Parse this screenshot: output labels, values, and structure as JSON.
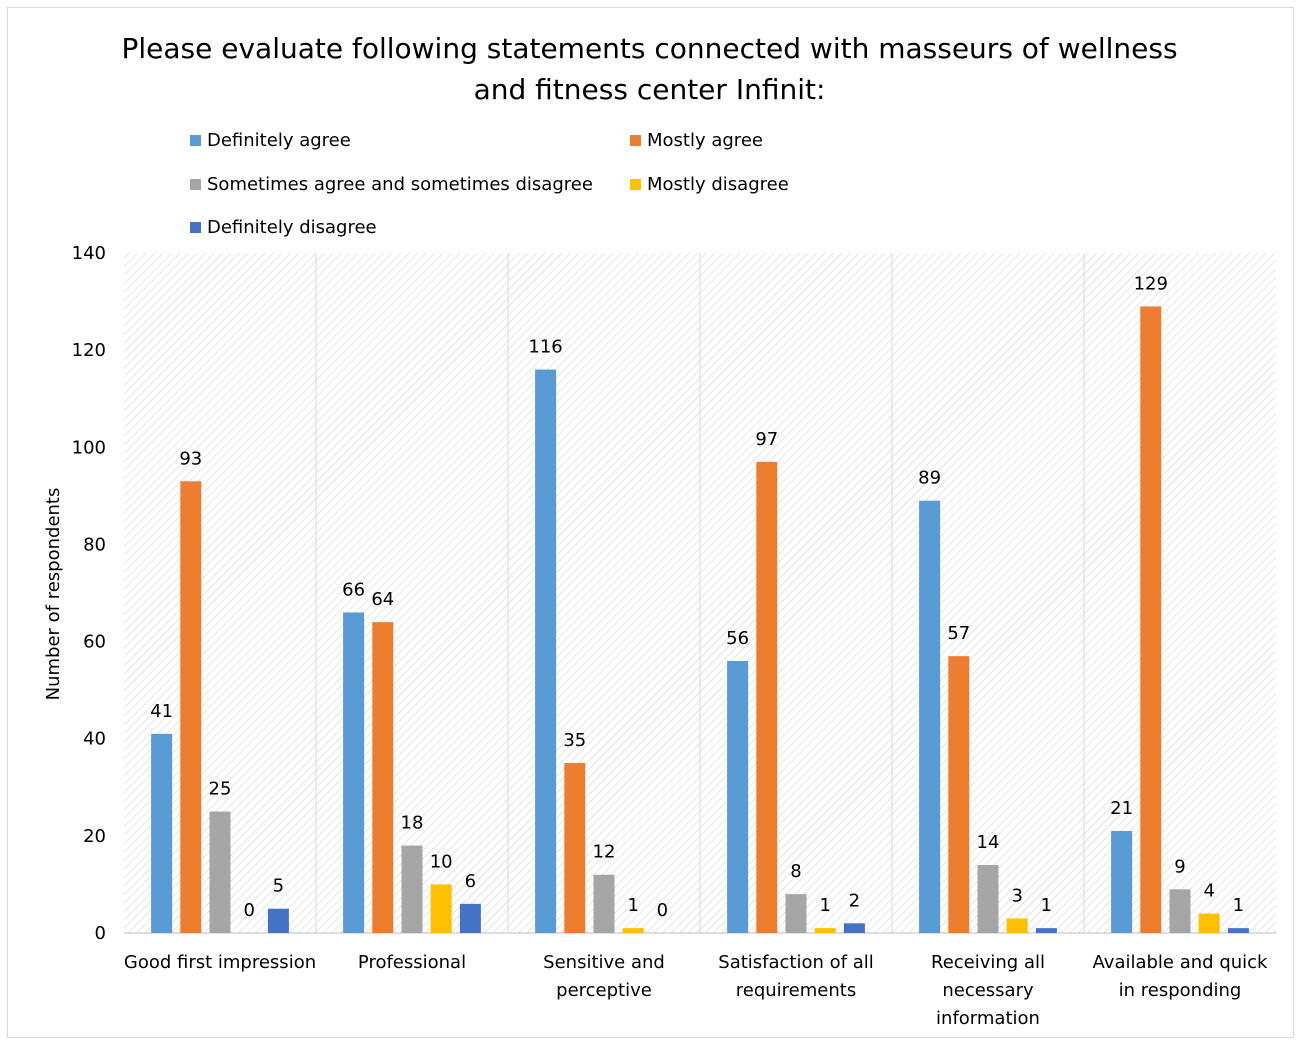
{
  "chart_data": {
    "type": "bar",
    "title_lines": [
      "Please evaluate following statements connected with masseurs of wellness",
      "and fitness center Infinit:"
    ],
    "xlabel": "",
    "ylabel": "Number of respondents",
    "ylim": [
      0,
      140
    ],
    "yticks": [
      "0",
      "20",
      "40",
      "60",
      "80",
      "100",
      "120",
      "140"
    ],
    "legend_position": "top",
    "categories": [
      [
        "Good first impression"
      ],
      [
        "Professional"
      ],
      [
        "Sensitive and",
        "perceptive"
      ],
      [
        "Satisfaction of all",
        "requirements"
      ],
      [
        "Receiving all",
        "necessary",
        "information"
      ],
      [
        "Available and quick",
        "in responding"
      ]
    ],
    "series": [
      {
        "name": "Definitely agree",
        "color": "#5b9bd5",
        "values": [
          41,
          66,
          116,
          56,
          89,
          21
        ]
      },
      {
        "name": "Mostly agree",
        "color": "#ed7d31",
        "values": [
          93,
          64,
          35,
          97,
          57,
          129
        ]
      },
      {
        "name": "Sometimes agree and sometimes disagree",
        "color": "#a5a5a5",
        "values": [
          25,
          18,
          12,
          8,
          14,
          9
        ]
      },
      {
        "name": "Mostly disagree",
        "color": "#ffc000",
        "values": [
          0,
          10,
          1,
          1,
          3,
          4
        ]
      },
      {
        "name": "Definitely disagree",
        "color": "#4472c4",
        "values": [
          5,
          6,
          0,
          2,
          1,
          1
        ]
      }
    ],
    "grid": true,
    "data_labels": true
  }
}
